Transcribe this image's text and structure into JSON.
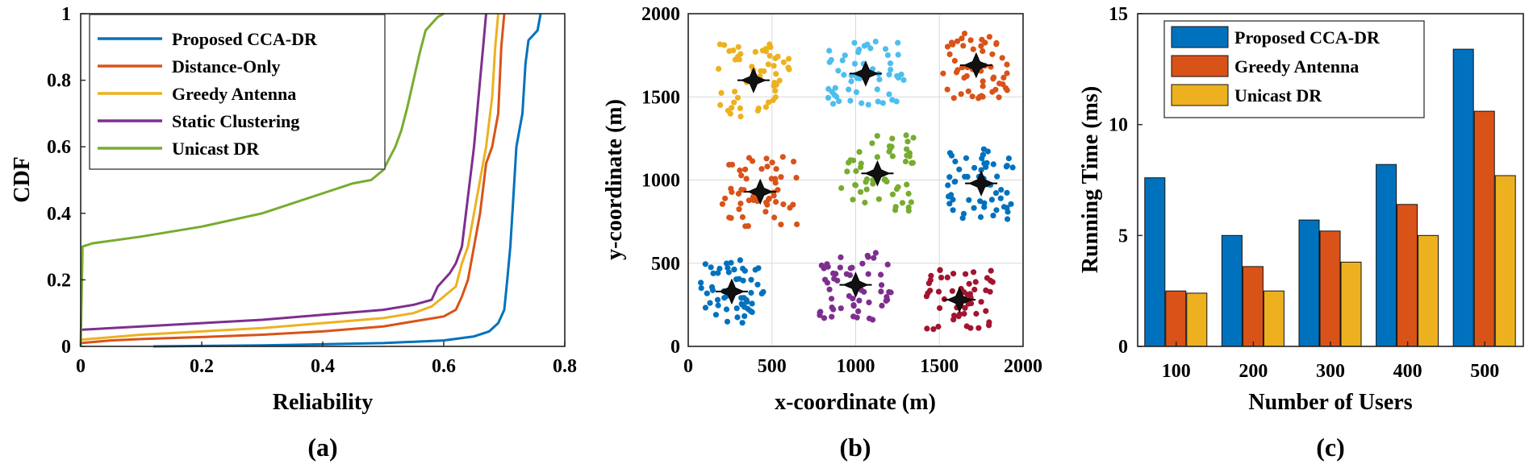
{
  "chart_data": [
    {
      "type": "line",
      "panel_label": "(a)",
      "xlabel": "Reliability",
      "ylabel": "CDF",
      "xlim": [
        0,
        0.8
      ],
      "ylim": [
        0,
        1
      ],
      "xticks": [
        "0",
        "0.2",
        "0.4",
        "0.6",
        "0.8"
      ],
      "yticks": [
        "0",
        "0.2",
        "0.4",
        "0.6",
        "0.8",
        "1"
      ],
      "grid": false,
      "legend_position": "top-left",
      "series": [
        {
          "name": "Proposed CCA-DR",
          "color": "#0072BD",
          "points": [
            [
              0.12,
              0
            ],
            [
              0.3,
              0.003
            ],
            [
              0.5,
              0.01
            ],
            [
              0.6,
              0.018
            ],
            [
              0.65,
              0.03
            ],
            [
              0.675,
              0.045
            ],
            [
              0.69,
              0.07
            ],
            [
              0.7,
              0.11
            ],
            [
              0.705,
              0.2
            ],
            [
              0.71,
              0.3
            ],
            [
              0.715,
              0.45
            ],
            [
              0.72,
              0.6
            ],
            [
              0.725,
              0.65
            ],
            [
              0.73,
              0.7
            ],
            [
              0.735,
              0.85
            ],
            [
              0.74,
              0.92
            ],
            [
              0.755,
              0.95
            ],
            [
              0.76,
              1
            ]
          ]
        },
        {
          "name": "Distance-Only",
          "color": "#D95319",
          "points": [
            [
              0,
              0.01
            ],
            [
              0.05,
              0.018
            ],
            [
              0.1,
              0.022
            ],
            [
              0.2,
              0.028
            ],
            [
              0.3,
              0.035
            ],
            [
              0.4,
              0.045
            ],
            [
              0.5,
              0.06
            ],
            [
              0.55,
              0.075
            ],
            [
              0.6,
              0.09
            ],
            [
              0.62,
              0.11
            ],
            [
              0.63,
              0.15
            ],
            [
              0.64,
              0.2
            ],
            [
              0.65,
              0.3
            ],
            [
              0.66,
              0.4
            ],
            [
              0.67,
              0.55
            ],
            [
              0.68,
              0.6
            ],
            [
              0.69,
              0.7
            ],
            [
              0.695,
              0.9
            ],
            [
              0.7,
              1
            ]
          ]
        },
        {
          "name": "Greedy Antenna",
          "color": "#EDB120",
          "points": [
            [
              0,
              0.02
            ],
            [
              0.1,
              0.035
            ],
            [
              0.2,
              0.045
            ],
            [
              0.3,
              0.055
            ],
            [
              0.4,
              0.07
            ],
            [
              0.5,
              0.085
            ],
            [
              0.55,
              0.1
            ],
            [
              0.58,
              0.12
            ],
            [
              0.6,
              0.15
            ],
            [
              0.62,
              0.18
            ],
            [
              0.63,
              0.25
            ],
            [
              0.64,
              0.3
            ],
            [
              0.65,
              0.4
            ],
            [
              0.66,
              0.5
            ],
            [
              0.67,
              0.6
            ],
            [
              0.68,
              0.75
            ],
            [
              0.685,
              0.9
            ],
            [
              0.69,
              1
            ]
          ]
        },
        {
          "name": "Static Clustering",
          "color": "#7E2F8E",
          "points": [
            [
              0,
              0.05
            ],
            [
              0.1,
              0.06
            ],
            [
              0.2,
              0.07
            ],
            [
              0.3,
              0.08
            ],
            [
              0.4,
              0.095
            ],
            [
              0.5,
              0.11
            ],
            [
              0.55,
              0.125
            ],
            [
              0.58,
              0.14
            ],
            [
              0.59,
              0.18
            ],
            [
              0.6,
              0.2
            ],
            [
              0.61,
              0.22
            ],
            [
              0.62,
              0.25
            ],
            [
              0.63,
              0.3
            ],
            [
              0.64,
              0.45
            ],
            [
              0.65,
              0.6
            ],
            [
              0.66,
              0.8
            ],
            [
              0.665,
              0.9
            ],
            [
              0.67,
              1
            ]
          ]
        },
        {
          "name": "Unicast DR",
          "color": "#77AC30",
          "points": [
            [
              0,
              0
            ],
            [
              0.003,
              0.3
            ],
            [
              0.02,
              0.31
            ],
            [
              0.1,
              0.33
            ],
            [
              0.2,
              0.36
            ],
            [
              0.3,
              0.4
            ],
            [
              0.4,
              0.46
            ],
            [
              0.45,
              0.49
            ],
            [
              0.48,
              0.5
            ],
            [
              0.5,
              0.53
            ],
            [
              0.52,
              0.6
            ],
            [
              0.53,
              0.65
            ],
            [
              0.54,
              0.72
            ],
            [
              0.55,
              0.8
            ],
            [
              0.56,
              0.88
            ],
            [
              0.57,
              0.95
            ],
            [
              0.59,
              0.99
            ],
            [
              0.6,
              1
            ]
          ]
        }
      ]
    },
    {
      "type": "scatter",
      "panel_label": "(b)",
      "xlabel": "x-coordinate (m)",
      "ylabel": "y-coordinate (m)",
      "xlim": [
        0,
        2000
      ],
      "ylim": [
        0,
        2000
      ],
      "xticks": [
        "0",
        "500",
        "1000",
        "1500",
        "2000"
      ],
      "yticks": [
        "0",
        "500",
        "1000",
        "1500",
        "2000"
      ],
      "grid": true,
      "clusters": [
        {
          "color": "#0072BD",
          "center": [
            260,
            330
          ],
          "spread": [
            190,
            190
          ],
          "count": 55
        },
        {
          "color": "#D95319",
          "center": [
            430,
            930
          ],
          "spread": [
            230,
            210
          ],
          "count": 55
        },
        {
          "color": "#EDB120",
          "center": [
            390,
            1600
          ],
          "spread": [
            220,
            220
          ],
          "count": 55
        },
        {
          "color": "#4DBEEE",
          "center": [
            1060,
            1640
          ],
          "spread": [
            230,
            200
          ],
          "count": 55
        },
        {
          "color": "#D95319",
          "center": [
            1720,
            1690
          ],
          "spread": [
            200,
            200
          ],
          "count": 55
        },
        {
          "color": "#77AC30",
          "center": [
            1130,
            1040
          ],
          "spread": [
            220,
            230
          ],
          "count": 55
        },
        {
          "color": "#0072BD",
          "center": [
            1750,
            980
          ],
          "spread": [
            200,
            220
          ],
          "count": 55
        },
        {
          "color": "#7E2F8E",
          "center": [
            1000,
            370
          ],
          "spread": [
            220,
            210
          ],
          "count": 55
        },
        {
          "color": "#A2142F",
          "center": [
            1620,
            280
          ],
          "spread": [
            200,
            190
          ],
          "count": 55
        }
      ]
    },
    {
      "type": "bar",
      "panel_label": "(c)",
      "xlabel": "Number of Users",
      "ylabel": "Running Time (ms)",
      "categories": [
        "100",
        "200",
        "300",
        "400",
        "500"
      ],
      "ylim": [
        0,
        15
      ],
      "yticks": [
        "0",
        "5",
        "10",
        "15"
      ],
      "grid": false,
      "legend_position": "top-left",
      "series": [
        {
          "name": "Proposed CCA-DR",
          "color": "#0072BD",
          "values": [
            7.6,
            5.0,
            5.7,
            8.2,
            13.4
          ]
        },
        {
          "name": "Greedy Antenna",
          "color": "#D95319",
          "values": [
            2.5,
            3.6,
            5.2,
            6.4,
            10.6
          ]
        },
        {
          "name": "Unicast DR",
          "color": "#EDB120",
          "values": [
            2.4,
            2.5,
            3.8,
            5.0,
            7.7
          ]
        }
      ]
    }
  ]
}
